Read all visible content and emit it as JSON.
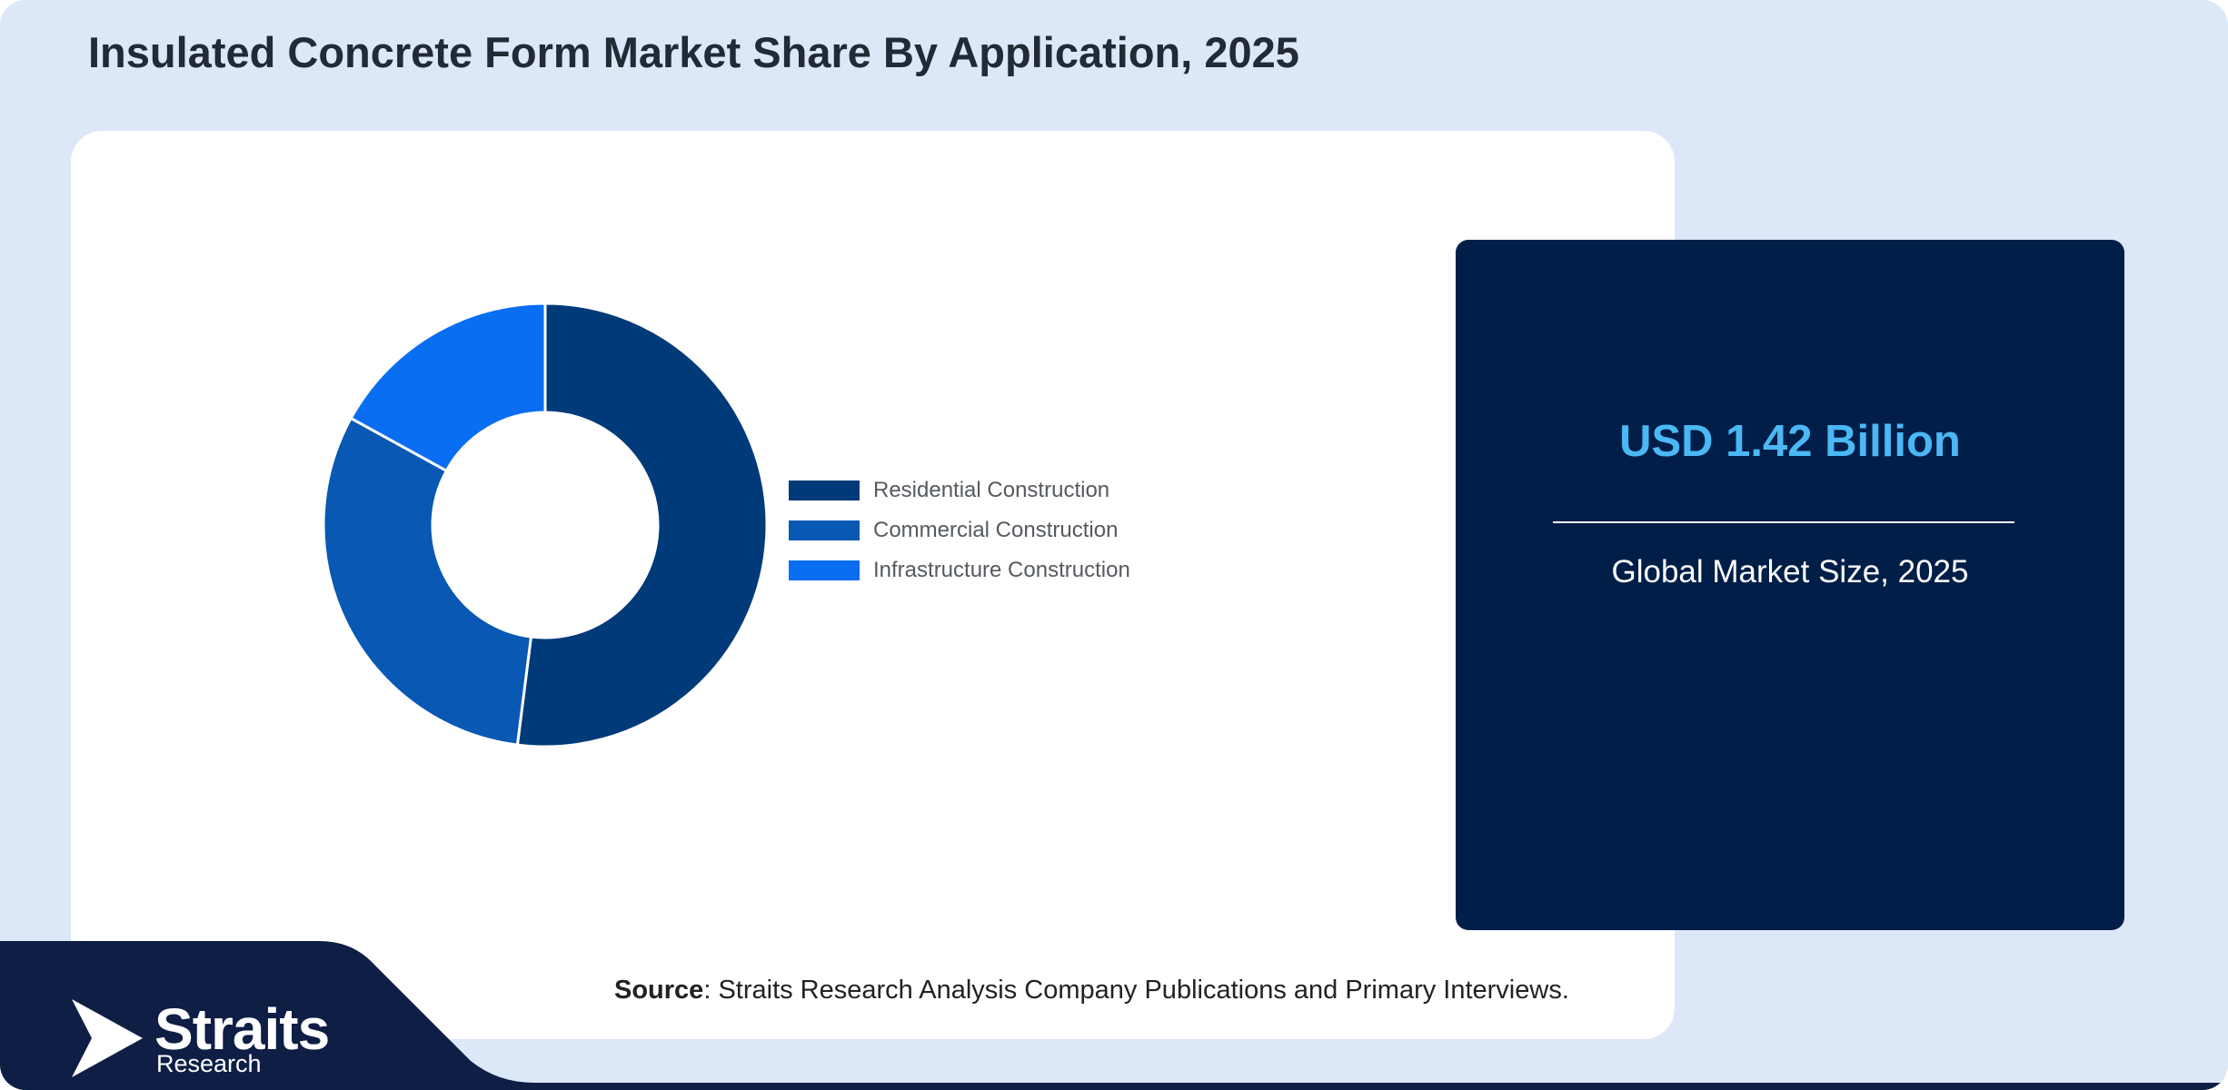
{
  "title": "Insulated Concrete Form Market Share By Application, 2025",
  "stat": {
    "value": "USD 1.42 Billion",
    "label": "Global Market Size, 2025"
  },
  "source": {
    "prefix": "Source",
    "text": ": Straits Research Analysis Company Publications and Primary Interviews."
  },
  "logo": {
    "name": "Straits",
    "subtitle": "Research"
  },
  "colors": {
    "frame_bg": "#dce7f8",
    "navy": "#001e47",
    "accent_text": "#4ab8f4"
  },
  "chart_data": {
    "type": "pie",
    "subtype": "donut",
    "title": "",
    "categories": [
      "Residential Construction",
      "Commercial Construction",
      "Infrastructure Construction"
    ],
    "values": [
      52,
      31,
      17
    ],
    "colors": [
      "#003a79",
      "#0858b4",
      "#0a6ef3"
    ],
    "legend_position": "right"
  }
}
